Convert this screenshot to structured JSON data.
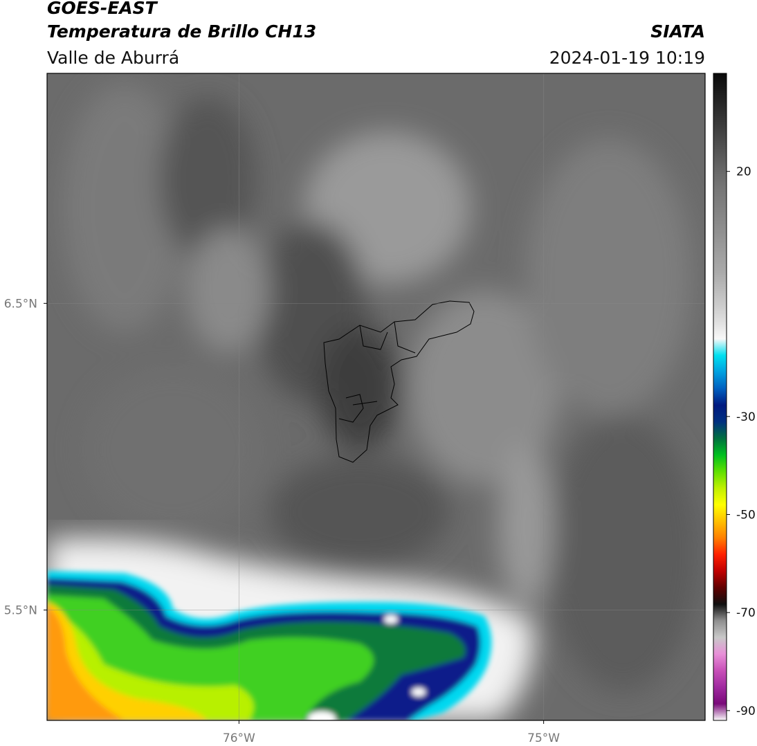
{
  "header": {
    "title": "GOES-EAST",
    "subtitle": "Temperatura de Brillo CH13",
    "region": "Valle de Aburrá",
    "source": "SIATA",
    "timestamp": "2024-01-19 10:19"
  },
  "map": {
    "xlim": [
      -76.63,
      -74.47
    ],
    "ylim": [
      5.14,
      7.25
    ],
    "xticks": [
      {
        "value": -76,
        "label": "76°W"
      },
      {
        "value": -75,
        "label": "75°W"
      }
    ],
    "yticks": [
      {
        "value": 6.5,
        "label": "6.5°N"
      },
      {
        "value": 5.5,
        "label": "5.5°N"
      }
    ],
    "grid": true
  },
  "colorbar": {
    "lim": [
      -92,
      40
    ],
    "ticks": [
      20,
      -30,
      -50,
      -70,
      -90
    ],
    "colors": [
      "#fafafa",
      "#7a0a7a",
      "#a02aa0",
      "#c850b8",
      "#e890d8",
      "#c8c8c8",
      "#909090",
      "#101010",
      "#600000",
      "#c00000",
      "#ff2000",
      "#ff8000",
      "#ffc000",
      "#ffff00",
      "#c0f000",
      "#60e000",
      "#00c020",
      "#007040",
      "#003080",
      "#001a80",
      "#0060c0",
      "#00a0e0",
      "#00e0f0",
      "#f8f8f8",
      "#e0e0e0",
      "#cccccc",
      "#bbbbbb",
      "#aaaaaa",
      "#a0a0a0",
      "#959595",
      "#8a8a8a",
      "#808080",
      "#777777",
      "#6a6a6a",
      "#5a5a5a",
      "#4a4a4a",
      "#3a3a3a",
      "#2a2a2a",
      "#1a1a1a",
      "#0a0a0a"
    ]
  }
}
